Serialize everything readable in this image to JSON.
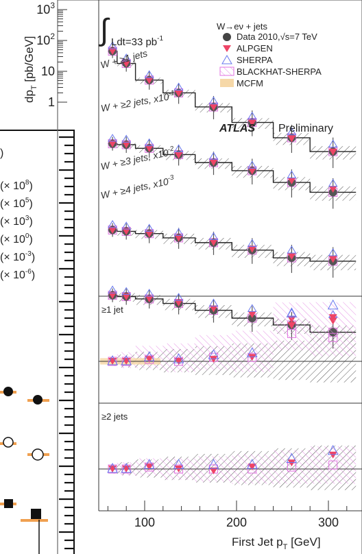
{
  "figure": {
    "lumi_label": "Ldt=33 pb",
    "lumi_sup": "-1",
    "atlas": "ATLAS",
    "preliminary": "Preliminary"
  },
  "legend": {
    "title": "W→eν + jets",
    "entries": [
      {
        "label": "Data 2010,√s=7 TeV",
        "marker": "filled-circle",
        "color": "#444444"
      },
      {
        "label": "ALPGEN",
        "marker": "filled-triangle-down",
        "color": "#ee4466"
      },
      {
        "label": "SHERPA",
        "marker": "open-triangle-up",
        "color": "#6677ee"
      },
      {
        "label": "BLACKHAT-SHERPA",
        "marker": "hatched-box",
        "color": "#e070e0"
      },
      {
        "label": "MCFM",
        "marker": "filled-box",
        "color": "#f6d8a8"
      }
    ]
  },
  "left_panel": {
    "scale_labels": [
      "(× 10",
      "(× 10",
      "(× 10",
      "(× 10",
      "(× 10",
      "(× 10"
    ],
    "scale_exps": [
      "8",
      "5",
      "3",
      "0",
      "-3",
      "-6"
    ]
  },
  "chart_data": {
    "type": "scatter",
    "title": "",
    "xlabel": "First Jet p",
    "xlabel_sub": "T",
    "xlabel_unit": " [GeV]",
    "ylabel": "dp",
    "ylabel_sub": "T",
    "ylabel_unit": " [pb/GeV]",
    "yscale": "log",
    "x_ticks": [
      "100",
      "200",
      "300"
    ],
    "x_tick_values": [
      100,
      200,
      300
    ],
    "y_ticks": [
      {
        "base": "10",
        "exp": "3",
        "value": 1000
      },
      {
        "base": "10",
        "exp": "2",
        "value": 100
      },
      {
        "base": "10",
        "exp": "",
        "value": 10
      },
      {
        "base": "1",
        "exp": "",
        "value": 1
      }
    ],
    "xlim": [
      55,
      325
    ],
    "x_bin_edges": [
      60,
      70,
      90,
      120,
      155,
      195,
      240,
      280,
      330
    ],
    "series": [
      {
        "label": "W + ≥1 jets",
        "x": [
          65,
          80,
          105,
          137,
          175,
          217,
          260,
          305
        ],
        "data": [
          45,
          18,
          5.2,
          2.0,
          0.7,
          0.22,
          0.07,
          0.025
        ],
        "alpgen": [
          44,
          17.5,
          5.0,
          1.9,
          0.68,
          0.21,
          0.065,
          0.024
        ],
        "sherpa": [
          46,
          18.5,
          5.3,
          2.1,
          0.75,
          0.24,
          0.075,
          0.03
        ]
      },
      {
        "label": "W + ≥2 jets, x10",
        "exp": "-1",
        "x": [
          65,
          80,
          105,
          137,
          175,
          217,
          260,
          305
        ],
        "data": [
          0.45,
          0.42,
          0.32,
          0.2,
          0.11,
          0.06,
          0.025,
          0.012
        ],
        "alpgen": [
          0.44,
          0.41,
          0.31,
          0.19,
          0.11,
          0.058,
          0.028,
          0.015
        ],
        "sherpa": [
          0.46,
          0.43,
          0.33,
          0.21,
          0.12,
          0.062,
          0.03,
          0.016
        ]
      },
      {
        "label": "W + ≥3 jets, x10",
        "exp": "-2",
        "x": [
          65,
          80,
          105,
          137,
          175,
          217,
          260,
          305
        ],
        "data": [
          0.0072,
          0.0065,
          0.0055,
          0.004,
          0.0028,
          0.0016,
          0.0009,
          0.0007
        ],
        "alpgen": [
          0.007,
          0.0064,
          0.0053,
          0.0039,
          0.0028,
          0.0017,
          0.001,
          0.0008
        ],
        "sherpa": [
          0.0074,
          0.0066,
          0.0056,
          0.0041,
          0.003,
          0.0018,
          0.0011,
          0.0009
        ]
      },
      {
        "label": "W + ≥4 jets, x10",
        "exp": "-3",
        "x": [
          65,
          80,
          105,
          137,
          175,
          217,
          260,
          305
        ],
        "data": [
          0.00055,
          0.0005,
          0.00042,
          0.0003,
          0.00018,
          0.0001,
          6e-05,
          3.5e-05
        ],
        "alpgen": [
          0.00054,
          0.00049,
          0.00042,
          0.00031,
          0.0002,
          0.00013,
          9e-05,
          8e-05
        ],
        "sherpa": [
          0.00056,
          0.0005,
          0.00044,
          0.00032,
          0.00021,
          0.00014,
          0.0001,
          9e-05
        ]
      }
    ],
    "ratio_panels": [
      {
        "label": "≥1 jet",
        "ylim": [
          0.5,
          2.8
        ],
        "x": [
          65,
          80,
          105,
          137,
          175,
          217,
          260,
          305
        ],
        "alpgen": [
          1.0,
          1.0,
          1.05,
          1.0,
          1.05,
          1.1,
          1.9,
          2.1
        ],
        "sherpa": [
          1.0,
          1.0,
          1.1,
          1.05,
          1.15,
          1.2,
          2.2,
          2.4
        ],
        "blackhat": [
          1.0,
          1.0,
          1.05,
          1.0,
          1.1,
          1.1,
          1.7,
          1.6
        ]
      },
      {
        "label": "≥2 jets",
        "ylim": [
          0.5,
          2.8
        ],
        "x": [
          65,
          80,
          105,
          137,
          175,
          217,
          260,
          305
        ],
        "alpgen": [
          1.0,
          1.0,
          1.05,
          1.0,
          0.95,
          1.05,
          1.15,
          1.35
        ],
        "sherpa": [
          1.0,
          1.0,
          1.1,
          1.1,
          1.1,
          1.1,
          1.25,
          1.45
        ],
        "blackhat": [
          1.0,
          1.0,
          1.05,
          1.0,
          1.0,
          1.0,
          1.05,
          1.1
        ]
      }
    ]
  }
}
